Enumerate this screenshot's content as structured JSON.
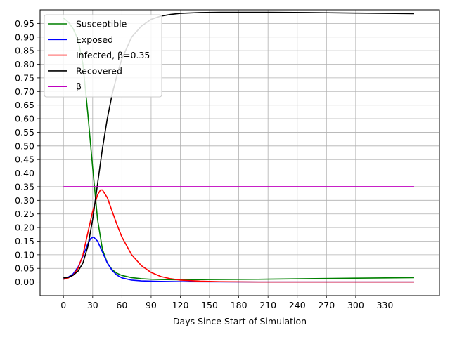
{
  "chart_data": {
    "type": "line",
    "title": "",
    "xlabel": "Days Since Start of Simulation",
    "ylabel": "",
    "xlim": [
      -24,
      386
    ],
    "ylim": [
      -0.05,
      1.0
    ],
    "xticks": [
      0,
      30,
      60,
      90,
      120,
      150,
      180,
      210,
      240,
      270,
      300,
      330
    ],
    "yticks": [
      0.0,
      0.05,
      0.1,
      0.15,
      0.2,
      0.25,
      0.3,
      0.35,
      0.4,
      0.45,
      0.5,
      0.55,
      0.6,
      0.65,
      0.7,
      0.75,
      0.8,
      0.85,
      0.9,
      0.95
    ],
    "grid": true,
    "legend_position": "top-left",
    "series": [
      {
        "name": "Susceptible",
        "color": "#008000",
        "points": [
          [
            0,
            0.97
          ],
          [
            5,
            0.955
          ],
          [
            10,
            0.93
          ],
          [
            15,
            0.89
          ],
          [
            20,
            0.8
          ],
          [
            25,
            0.62
          ],
          [
            30,
            0.42
          ],
          [
            35,
            0.23
          ],
          [
            40,
            0.12
          ],
          [
            45,
            0.07
          ],
          [
            50,
            0.045
          ],
          [
            55,
            0.032
          ],
          [
            60,
            0.024
          ],
          [
            70,
            0.016
          ],
          [
            80,
            0.012
          ],
          [
            90,
            0.01
          ],
          [
            100,
            0.009
          ],
          [
            120,
            0.008
          ],
          [
            150,
            0.009
          ],
          [
            200,
            0.01
          ],
          [
            250,
            0.012
          ],
          [
            300,
            0.014
          ],
          [
            360,
            0.016
          ]
        ]
      },
      {
        "name": "Exposed",
        "color": "#0000ff",
        "points": [
          [
            0,
            0.01
          ],
          [
            5,
            0.018
          ],
          [
            10,
            0.03
          ],
          [
            15,
            0.055
          ],
          [
            20,
            0.095
          ],
          [
            25,
            0.14
          ],
          [
            28,
            0.16
          ],
          [
            31,
            0.165
          ],
          [
            35,
            0.15
          ],
          [
            40,
            0.11
          ],
          [
            45,
            0.07
          ],
          [
            50,
            0.042
          ],
          [
            55,
            0.025
          ],
          [
            60,
            0.015
          ],
          [
            70,
            0.007
          ],
          [
            80,
            0.004
          ],
          [
            100,
            0.002
          ],
          [
            120,
            0.001
          ],
          [
            200,
            0.0
          ],
          [
            360,
            0.0
          ]
        ]
      },
      {
        "name": "Infected, β=0.35",
        "color": "#ff0000",
        "points": [
          [
            0,
            0.01
          ],
          [
            5,
            0.015
          ],
          [
            10,
            0.025
          ],
          [
            15,
            0.05
          ],
          [
            20,
            0.1
          ],
          [
            25,
            0.18
          ],
          [
            30,
            0.26
          ],
          [
            35,
            0.32
          ],
          [
            38,
            0.338
          ],
          [
            40,
            0.338
          ],
          [
            45,
            0.31
          ],
          [
            50,
            0.26
          ],
          [
            55,
            0.21
          ],
          [
            60,
            0.165
          ],
          [
            70,
            0.1
          ],
          [
            80,
            0.06
          ],
          [
            90,
            0.035
          ],
          [
            100,
            0.02
          ],
          [
            110,
            0.012
          ],
          [
            120,
            0.007
          ],
          [
            140,
            0.003
          ],
          [
            160,
            0.001
          ],
          [
            200,
            0.0
          ],
          [
            360,
            0.0
          ]
        ]
      },
      {
        "name": "Recovered",
        "color": "#000000",
        "points": [
          [
            0,
            0.015
          ],
          [
            5,
            0.017
          ],
          [
            10,
            0.025
          ],
          [
            15,
            0.04
          ],
          [
            20,
            0.07
          ],
          [
            25,
            0.13
          ],
          [
            30,
            0.23
          ],
          [
            35,
            0.36
          ],
          [
            40,
            0.49
          ],
          [
            45,
            0.6
          ],
          [
            50,
            0.69
          ],
          [
            55,
            0.76
          ],
          [
            60,
            0.82
          ],
          [
            70,
            0.9
          ],
          [
            80,
            0.94
          ],
          [
            90,
            0.965
          ],
          [
            100,
            0.977
          ],
          [
            110,
            0.983
          ],
          [
            120,
            0.987
          ],
          [
            140,
            0.99
          ],
          [
            160,
            0.991
          ],
          [
            200,
            0.991
          ],
          [
            250,
            0.99
          ],
          [
            300,
            0.988
          ],
          [
            360,
            0.986
          ]
        ]
      },
      {
        "name": "β",
        "color": "#bf00bf",
        "points": [
          [
            0,
            0.35
          ],
          [
            360,
            0.35
          ]
        ]
      }
    ]
  }
}
